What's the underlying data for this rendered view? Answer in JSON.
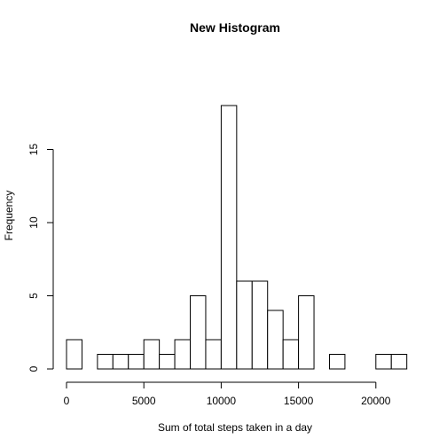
{
  "chart_data": {
    "type": "bar",
    "title": "New Histogram",
    "xlabel": "Sum of total steps taken in a day",
    "ylabel": "Frequency",
    "xlim": [
      0,
      22000
    ],
    "ylim": [
      0,
      18
    ],
    "bin_width": 1000,
    "bin_starts": [
      0,
      1000,
      2000,
      3000,
      4000,
      5000,
      6000,
      7000,
      8000,
      9000,
      10000,
      11000,
      12000,
      13000,
      14000,
      15000,
      16000,
      17000,
      18000,
      19000,
      20000,
      21000
    ],
    "values": [
      2,
      0,
      1,
      1,
      1,
      2,
      1,
      2,
      5,
      2,
      18,
      6,
      6,
      4,
      2,
      5,
      0,
      1,
      0,
      0,
      1,
      1
    ],
    "x_ticks": [
      0,
      5000,
      10000,
      15000,
      20000
    ],
    "x_tick_labels": [
      "0",
      "5000",
      "10000",
      "15000",
      "20000"
    ],
    "y_ticks": [
      0,
      5,
      10,
      15
    ],
    "y_tick_labels": [
      "0",
      "5",
      "10",
      "15"
    ],
    "grid": false,
    "legend": "none"
  }
}
